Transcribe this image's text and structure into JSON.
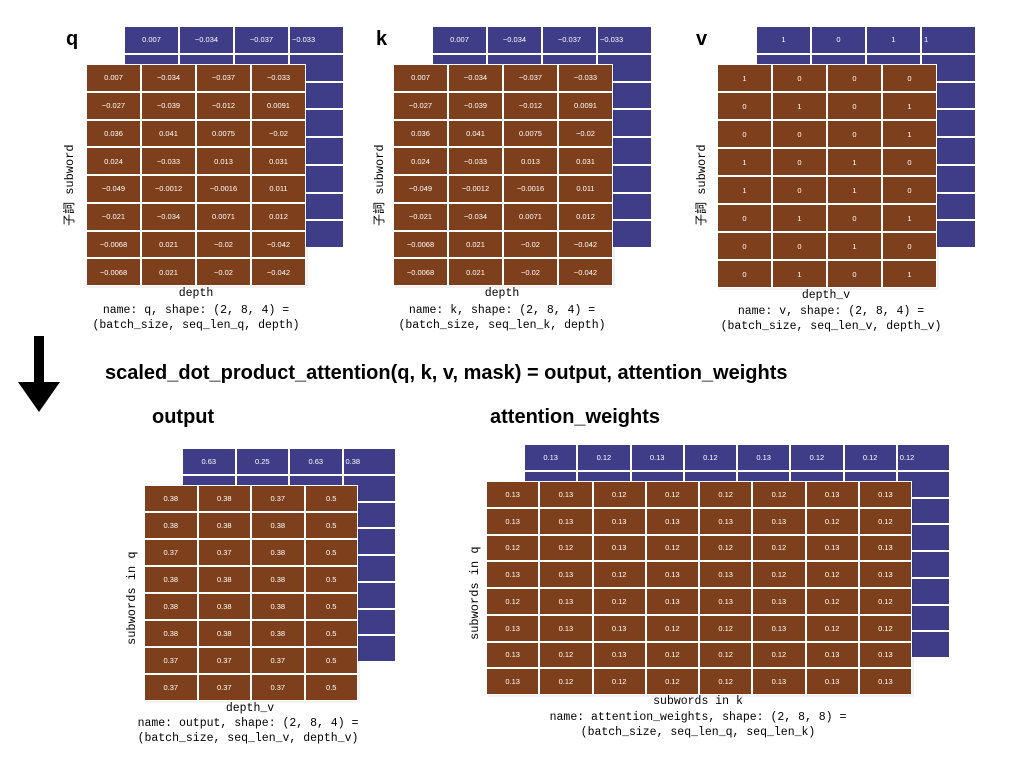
{
  "formula": "scaled_dot_product_attention(q, k, v, mask) = output, attention_weights",
  "colors": {
    "back_layer": "#3f3d88",
    "front_layer": "#7e3f1c",
    "cell_text": "#ffffff"
  },
  "tensors": {
    "q": {
      "letter": "q",
      "ylabel": "子詞 subword",
      "xlabel": "depth",
      "caption_line1": "name: q, shape: (2, 8, 4) =",
      "caption_line2": "(batch_size, seq_len_q, depth)",
      "back_top_row": [
        "0.007",
        "−0.034",
        "−0.037",
        "−0.033"
      ],
      "back_right_col": [
        "014",
        "041",
        "014",
        "044",
        "043",
        "011",
        "012"
      ],
      "front": [
        [
          "0.007",
          "−0.034",
          "−0.037",
          "−0.033"
        ],
        [
          "−0.027",
          "−0.039",
          "−0.012",
          "0.0091"
        ],
        [
          "0.036",
          "0.041",
          "0.0075",
          "−0.02"
        ],
        [
          "0.024",
          "−0.033",
          "0.013",
          "0.031"
        ],
        [
          "−0.049",
          "−0.0012",
          "−0.0016",
          "0.011"
        ],
        [
          "−0.021",
          "−0.034",
          "0.0071",
          "0.012"
        ],
        [
          "−0.0068",
          "0.021",
          "−0.02",
          "−0.042"
        ],
        [
          "−0.0068",
          "0.021",
          "−0.02",
          "−0.042"
        ]
      ]
    },
    "k": {
      "letter": "k",
      "ylabel": "子詞 subword",
      "xlabel": "depth",
      "caption_line1": "name: k, shape: (2, 8, 4) =",
      "caption_line2": "(batch_size, seq_len_k, depth)",
      "back_top_row": [
        "0.007",
        "−0.034",
        "−0.037",
        "−0.033"
      ],
      "back_right_col": [
        "014",
        "041",
        "014",
        "044",
        "043",
        "011",
        "012"
      ],
      "front": [
        [
          "0.007",
          "−0.034",
          "−0.037",
          "−0.033"
        ],
        [
          "−0.027",
          "−0.039",
          "−0.012",
          "0.0091"
        ],
        [
          "0.036",
          "0.041",
          "0.0075",
          "−0.02"
        ],
        [
          "0.024",
          "−0.033",
          "0.013",
          "0.031"
        ],
        [
          "−0.049",
          "−0.0012",
          "−0.0016",
          "0.011"
        ],
        [
          "−0.021",
          "−0.034",
          "0.0071",
          "0.012"
        ],
        [
          "−0.0068",
          "0.021",
          "−0.02",
          "−0.042"
        ],
        [
          "−0.0068",
          "0.021",
          "−0.02",
          "−0.042"
        ]
      ]
    },
    "v": {
      "letter": "v",
      "ylabel": "子詞 subword",
      "xlabel": "depth_v",
      "caption_line1": "name: v, shape: (2, 8, 4) =",
      "caption_line2": "(batch_size, seq_len_v, depth_v)",
      "back_top_row": [
        "1",
        "0",
        "1",
        "1"
      ],
      "back_right_col": [
        "0",
        "0",
        "0",
        "1",
        "1",
        "0",
        "0"
      ],
      "front": [
        [
          "1",
          "0",
          "0",
          "0"
        ],
        [
          "0",
          "1",
          "0",
          "1"
        ],
        [
          "0",
          "0",
          "0",
          "1"
        ],
        [
          "1",
          "0",
          "1",
          "0"
        ],
        [
          "1",
          "0",
          "1",
          "0"
        ],
        [
          "0",
          "1",
          "0",
          "1"
        ],
        [
          "0",
          "0",
          "1",
          "0"
        ],
        [
          "0",
          "1",
          "0",
          "1"
        ]
      ]
    },
    "output": {
      "title": "output",
      "ylabel": "subwords in q",
      "xlabel": "depth_v",
      "caption_line1": "name: output, shape: (2, 8, 4) =",
      "caption_line2": "(batch_size, seq_len_v, depth_v)",
      "back_top_row": [
        "0.63",
        "0.25",
        "0.63",
        "0.38"
      ],
      "back_right_col": [
        "37",
        "38",
        "38",
        "38",
        "38",
        "37",
        "37"
      ],
      "front": [
        [
          "0.38",
          "0.38",
          "0.37",
          "0.5"
        ],
        [
          "0.38",
          "0.38",
          "0.38",
          "0.5"
        ],
        [
          "0.37",
          "0.37",
          "0.38",
          "0.5"
        ],
        [
          "0.38",
          "0.38",
          "0.38",
          "0.5"
        ],
        [
          "0.38",
          "0.38",
          "0.38",
          "0.5"
        ],
        [
          "0.38",
          "0.38",
          "0.38",
          "0.5"
        ],
        [
          "0.37",
          "0.37",
          "0.37",
          "0.5"
        ],
        [
          "0.37",
          "0.37",
          "0.37",
          "0.5"
        ]
      ]
    },
    "attention_weights": {
      "title": "attention_weights",
      "ylabel": "subwords in q",
      "xlabel": "subwords in k",
      "caption_line1": "name: attention_weights, shape: (2, 8, 8) =",
      "caption_line2": "(batch_size, seq_len_q, seq_len_k)",
      "back_top_row": [
        "0.13",
        "0.12",
        "0.13",
        "0.12",
        "0.13",
        "0.12",
        "0.12",
        "0.12"
      ],
      "back_right_col": [
        "13",
        "12",
        "12",
        "12",
        "12",
        "12",
        "13"
      ],
      "front": [
        [
          "0.13",
          "0.13",
          "0.12",
          "0.12",
          "0.12",
          "0.12",
          "0.13",
          "0.13"
        ],
        [
          "0.13",
          "0.13",
          "0.13",
          "0.13",
          "0.13",
          "0.13",
          "0.12",
          "0.12"
        ],
        [
          "0.12",
          "0.12",
          "0.13",
          "0.12",
          "0.12",
          "0.12",
          "0.13",
          "0.13"
        ],
        [
          "0.13",
          "0.13",
          "0.12",
          "0.13",
          "0.13",
          "0.12",
          "0.12",
          "0.13"
        ],
        [
          "0.12",
          "0.13",
          "0.12",
          "0.13",
          "0.13",
          "0.13",
          "0.12",
          "0.12"
        ],
        [
          "0.13",
          "0.13",
          "0.13",
          "0.12",
          "0.12",
          "0.13",
          "0.12",
          "0.12"
        ],
        [
          "0.13",
          "0.12",
          "0.13",
          "0.12",
          "0.12",
          "0.12",
          "0.13",
          "0.13"
        ],
        [
          "0.13",
          "0.12",
          "0.12",
          "0.12",
          "0.12",
          "0.13",
          "0.13",
          "0.13"
        ]
      ]
    }
  }
}
